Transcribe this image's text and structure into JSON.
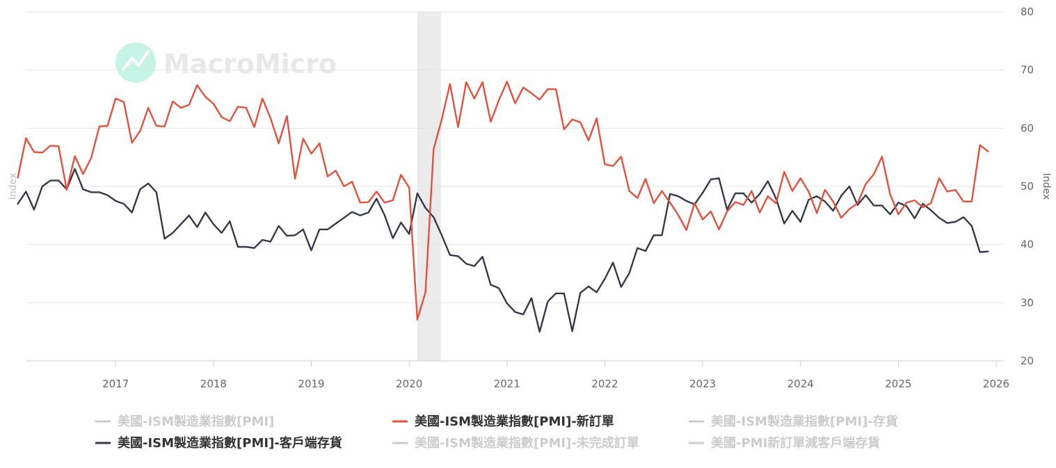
{
  "chart_data": {
    "type": "line",
    "title": "",
    "watermark": "MacroMicro",
    "right_axis_title": "Index",
    "left_axis_title": "Index",
    "xlabel": "",
    "ylabel": "Index",
    "ylim": [
      20,
      80
    ],
    "y_ticks": [
      20,
      30,
      40,
      50,
      60,
      70,
      80
    ],
    "x_ticks": [
      "2017",
      "2018",
      "2019",
      "2020",
      "2021",
      "2022",
      "2023",
      "2024",
      "2025",
      "2026"
    ],
    "x_start": "2016-01",
    "x_end": "2026-01",
    "grid": true,
    "recession_band": {
      "from": "2020-02",
      "to": "2020-04"
    },
    "legend_position": "bottom",
    "series": [
      {
        "name": "美國-ISM製造業指數[PMI]-新訂單",
        "color": "#e2513d",
        "visible": true,
        "values": [
          51.5,
          58.3,
          55.9,
          55.8,
          57.0,
          56.9,
          49.4,
          55.2,
          52.1,
          54.9,
          60.3,
          60.4,
          65.1,
          64.5,
          57.5,
          59.5,
          63.5,
          60.4,
          60.3,
          64.6,
          63.5,
          64.0,
          67.4,
          65.4,
          64.2,
          61.9,
          61.2,
          63.7,
          63.5,
          60.2,
          65.1,
          61.7,
          57.4,
          62.1,
          51.3,
          58.2,
          55.6,
          57.4,
          51.7,
          52.7,
          50.0,
          50.8,
          47.2,
          47.3,
          49.1,
          47.2,
          47.6,
          52.0,
          49.8,
          27.1,
          31.8,
          56.4,
          61.5,
          67.6,
          60.2,
          67.9,
          65.1,
          67.9,
          61.1,
          64.8,
          68.0,
          64.3,
          67.0,
          66.0,
          64.9,
          66.7,
          66.7,
          59.8,
          61.5,
          61.0,
          57.9,
          61.7,
          53.8,
          53.5,
          55.1,
          49.2,
          48.0,
          51.3,
          47.1,
          49.2,
          47.2,
          45.1,
          42.5,
          47.1,
          44.3,
          45.7,
          42.6,
          45.7,
          47.3,
          46.8,
          49.2,
          45.5,
          48.3,
          47.1,
          52.5,
          49.2,
          51.4,
          49.1,
          45.4,
          49.4,
          47.4,
          44.6,
          46.1,
          47.1,
          50.4,
          52.1,
          55.1,
          48.6,
          45.2,
          47.2,
          47.6,
          46.4,
          47.1,
          51.4,
          49.1,
          49.4,
          47.4,
          47.4,
          57.1,
          56.0
        ]
      },
      {
        "name": "美國-ISM製造業指數[PMI]-客戶端存貨",
        "color": "#363846",
        "visible": true,
        "values": [
          47.0,
          49.1,
          46.0,
          50.0,
          51.0,
          51.0,
          49.5,
          53.0,
          49.5,
          49.0,
          49.0,
          48.5,
          47.5,
          47.0,
          45.5,
          49.5,
          50.5,
          49.0,
          41.0,
          42.0,
          43.5,
          45.0,
          43.0,
          45.5,
          43.5,
          42.0,
          44.0,
          39.6,
          39.6,
          39.4,
          40.8,
          40.5,
          43.2,
          41.5,
          41.6,
          42.6,
          39.0,
          42.6,
          42.6,
          43.6,
          44.6,
          45.6,
          45.0,
          45.5,
          47.9,
          45.0,
          41.1,
          43.8,
          41.8,
          48.8,
          46.3,
          44.7,
          41.6,
          38.2,
          38.0,
          36.7,
          36.3,
          37.9,
          33.1,
          32.5,
          29.9,
          28.4,
          28.0,
          30.8,
          25.0,
          30.2,
          31.6,
          31.6,
          25.1,
          31.7,
          32.8,
          31.8,
          34.1,
          36.9,
          32.7,
          35.1,
          39.4,
          38.9,
          41.6,
          41.6,
          48.7,
          48.3,
          47.5,
          46.9,
          48.9,
          51.2,
          51.4,
          46.0,
          48.8,
          48.8,
          47.2,
          48.7,
          50.9,
          47.9,
          43.6,
          45.8,
          43.9,
          47.7,
          48.3,
          47.4,
          45.8,
          48.4,
          50.0,
          46.8,
          48.5,
          46.7,
          46.7,
          45.2,
          47.2,
          46.6,
          44.5,
          47.0,
          45.9,
          44.6,
          43.7,
          43.9,
          44.7,
          43.2,
          38.7,
          38.8
        ]
      },
      {
        "name": "美國-ISM製造業指數[PMI]",
        "color": "#c8c8c8",
        "visible": false
      },
      {
        "name": "美國-ISM製造業指數[PMI]-存貨",
        "color": "#c8c8c8",
        "visible": false
      },
      {
        "name": "美國-ISM製造業指數[PMI]-未完成訂單",
        "color": "#c8c8c8",
        "visible": false
      },
      {
        "name": "美國-PMI新訂單減客戶端存貨",
        "color": "#c8c8c8",
        "visible": false
      }
    ]
  },
  "legend": {
    "pmi": "美國-ISM製造業指數[PMI]",
    "new_orders": "美國-ISM製造業指數[PMI]-新訂單",
    "inventories": "美國-ISM製造業指數[PMI]-存貨",
    "customer_inventories": "美國-ISM製造業指數[PMI]-客戶端存貨",
    "backlog": "美國-ISM製造業指數[PMI]-未完成訂單",
    "spread": "美國-PMI新訂單減客戶端存貨"
  },
  "colors": {
    "grid": "#e6e6e6",
    "axis": "#cccccc",
    "band": "#ebebeb",
    "legend_active": "#333333",
    "legend_inactive": "#cccccc",
    "watermark": "#a8ecd9"
  }
}
